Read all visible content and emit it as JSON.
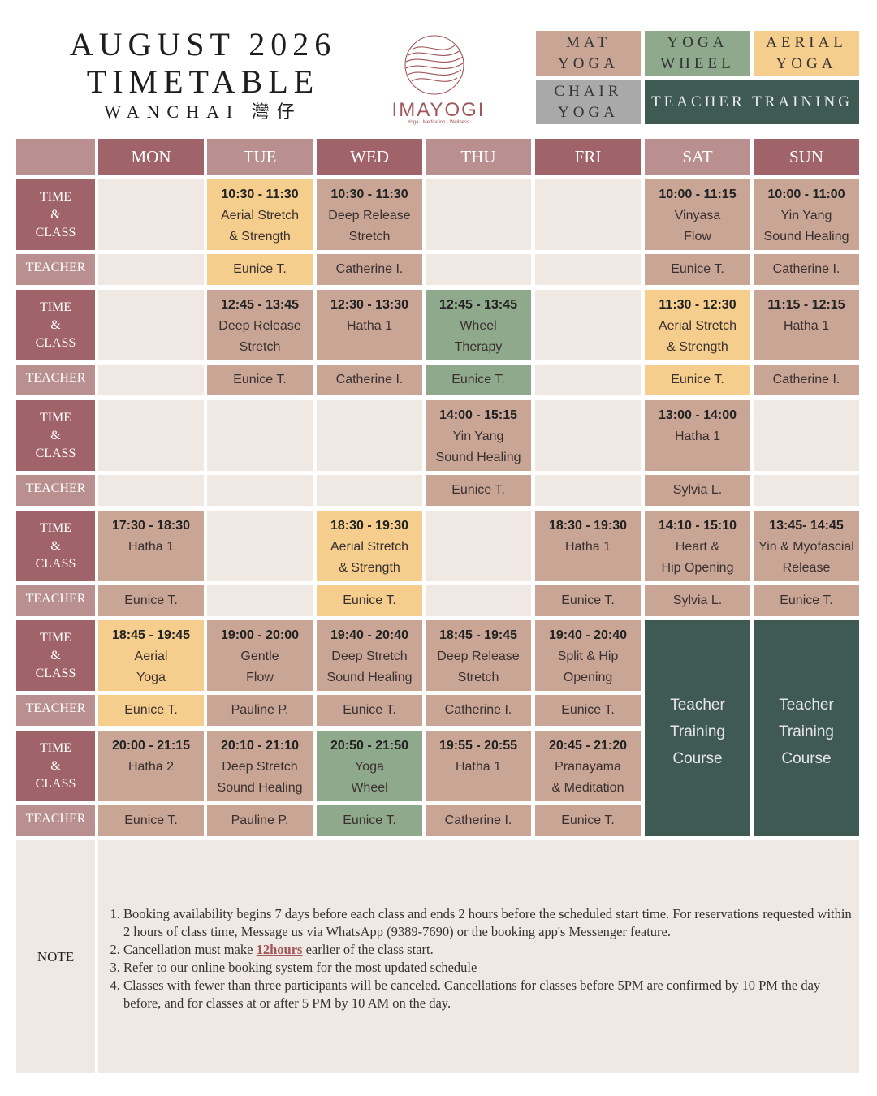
{
  "header": {
    "title_lines": [
      "AUGUST 2026",
      "TIMETABLE"
    ],
    "location": "WANCHAI 灣仔"
  },
  "logo": {
    "name": "IMAYOGI",
    "tagline": "Yoga · Meditation · Wellness"
  },
  "legend": [
    {
      "lines": [
        "MAT",
        "YOGA"
      ],
      "kind": "mat"
    },
    {
      "lines": [
        "YOGA",
        "WHEEL"
      ],
      "kind": "wheel"
    },
    {
      "lines": [
        "AERIAL",
        "YOGA"
      ],
      "kind": "aerial"
    },
    {
      "lines": [
        "CHAIR",
        "YOGA"
      ],
      "kind": "chair"
    },
    {
      "lines": [
        "TEACHER TRAINING"
      ],
      "kind": "training"
    }
  ],
  "colors": {
    "mat": "#c8a594",
    "wheel": "#8fa98c",
    "aerial": "#f5cd8c",
    "chair": "#a9a9a9",
    "training": "#3f5a52",
    "empty": "#f0e8e3"
  },
  "days": [
    "MON",
    "TUE",
    "WED",
    "THU",
    "FRI",
    "SAT",
    "SUN"
  ],
  "row_labels": {
    "time": "TIME",
    "amp": "&",
    "class": "CLASS",
    "teacher": "TEACHER"
  },
  "slots": [
    {
      "cells": [
        null,
        {
          "time": "10:30 - 11:30",
          "class": [
            "Aerial Stretch",
            "& Strength"
          ],
          "teacher": "Eunice T.",
          "kind": "aerial"
        },
        {
          "time": "10:30 - 11:30",
          "class": [
            "Deep Release",
            "Stretch"
          ],
          "teacher": "Catherine I.",
          "kind": "mat"
        },
        null,
        null,
        {
          "time": "10:00 - 11:15",
          "class": [
            "Vinyasa",
            "Flow"
          ],
          "teacher": "Eunice T.",
          "kind": "mat"
        },
        {
          "time": "10:00 - 11:00",
          "class": [
            "Yin Yang",
            "Sound Healing"
          ],
          "teacher": "Catherine I.",
          "kind": "mat"
        }
      ]
    },
    {
      "cells": [
        null,
        {
          "time": "12:45 - 13:45",
          "class": [
            "Deep Release",
            "Stretch"
          ],
          "teacher": "Eunice T.",
          "kind": "mat"
        },
        {
          "time": "12:30 - 13:30",
          "class": [
            "Hatha 1"
          ],
          "teacher": "Catherine I.",
          "kind": "mat"
        },
        {
          "time": "12:45 - 13:45",
          "class": [
            "Wheel",
            "Therapy"
          ],
          "teacher": "Eunice T.",
          "kind": "wheel"
        },
        null,
        {
          "time": "11:30 - 12:30",
          "class": [
            "Aerial Stretch",
            "& Strength"
          ],
          "teacher": "Eunice T.",
          "kind": "aerial"
        },
        {
          "time": "11:15 - 12:15",
          "class": [
            "Hatha 1"
          ],
          "teacher": "Catherine I.",
          "kind": "mat"
        }
      ]
    },
    {
      "cells": [
        null,
        null,
        null,
        {
          "time": "14:00 - 15:15",
          "class": [
            "Yin Yang",
            "Sound Healing"
          ],
          "teacher": "Eunice T.",
          "kind": "mat"
        },
        null,
        {
          "time": "13:00 - 14:00",
          "class": [
            "Hatha 1"
          ],
          "teacher": "Sylvia L.",
          "kind": "mat"
        },
        null
      ]
    },
    {
      "cells": [
        {
          "time": "17:30 - 18:30",
          "class": [
            "Hatha 1"
          ],
          "teacher": "Eunice T.",
          "kind": "mat"
        },
        null,
        {
          "time": "18:30 - 19:30",
          "class": [
            "Aerial Stretch",
            "& Strength"
          ],
          "teacher": "Eunice T.",
          "kind": "aerial"
        },
        null,
        {
          "time": "18:30 - 19:30",
          "class": [
            "Hatha 1"
          ],
          "teacher": "Eunice T.",
          "kind": "mat"
        },
        {
          "time": "14:10 - 15:10",
          "class": [
            "Heart &",
            "Hip Opening"
          ],
          "teacher": "Sylvia L.",
          "kind": "mat"
        },
        {
          "time": "13:45- 14:45",
          "class": [
            "Yin & Myofascial",
            "Release"
          ],
          "teacher": "Eunice T.",
          "kind": "mat"
        }
      ]
    },
    {
      "cells": [
        {
          "time": "18:45 - 19:45",
          "class": [
            "Aerial",
            "Yoga"
          ],
          "teacher": "Eunice T.",
          "kind": "aerial"
        },
        {
          "time": "19:00 - 20:00",
          "class": [
            "Gentle",
            "Flow"
          ],
          "teacher": "Pauline P.",
          "kind": "mat"
        },
        {
          "time": "19:40 - 20:40",
          "class": [
            "Deep Stretch",
            "Sound Healing"
          ],
          "teacher": "Eunice T.",
          "kind": "mat"
        },
        {
          "time": "18:45 - 19:45",
          "class": [
            "Deep Release",
            "Stretch"
          ],
          "teacher": "Catherine I.",
          "kind": "mat"
        },
        {
          "time": "19:40 - 20:40",
          "class": [
            "Split & Hip",
            "Opening"
          ],
          "teacher": "Eunice T.",
          "kind": "mat"
        }
      ]
    },
    {
      "cells": [
        {
          "time": "20:00 - 21:15",
          "class": [
            "Hatha 2"
          ],
          "teacher": "Eunice T.",
          "kind": "mat"
        },
        {
          "time": "20:10 - 21:10",
          "class": [
            "Deep Stretch",
            "Sound Healing"
          ],
          "teacher": "Pauline P.",
          "kind": "mat"
        },
        {
          "time": "20:50 - 21:50",
          "class": [
            "Yoga",
            "Wheel"
          ],
          "teacher": "Eunice T.",
          "kind": "wheel"
        },
        {
          "time": "19:55 - 20:55",
          "class": [
            "Hatha 1"
          ],
          "teacher": "Catherine I.",
          "kind": "mat"
        },
        {
          "time": "20:45 - 21:20",
          "class": [
            "Pranayama",
            "& Meditation"
          ],
          "teacher": "Eunice T.",
          "kind": "mat"
        }
      ]
    }
  ],
  "teacher_training": [
    {
      "lines": [
        "Teacher",
        "Training",
        "Course"
      ]
    },
    {
      "lines": [
        "Teacher",
        "Training",
        "Course"
      ]
    }
  ],
  "note": {
    "label": "NOTE",
    "items": [
      {
        "before": "Booking availability begins 7 days before each class and ends 2 hours before the scheduled start time. For reservations requested within 2 hours of class time, Message us via WhatsApp (9389-7690) or the booking app's Messenger feature."
      },
      {
        "before": "Cancellation must make ",
        "link": "12hours",
        "after": " earlier of the class start."
      },
      {
        "before": " Refer to our online booking system for the most updated schedule"
      },
      {
        "before": "Classes with fewer than three participants will be canceled. Cancellations for classes before 5PM are confirmed by 10 PM the day before, and for classes at or after 5 PM by 10 AM on the day."
      }
    ]
  }
}
